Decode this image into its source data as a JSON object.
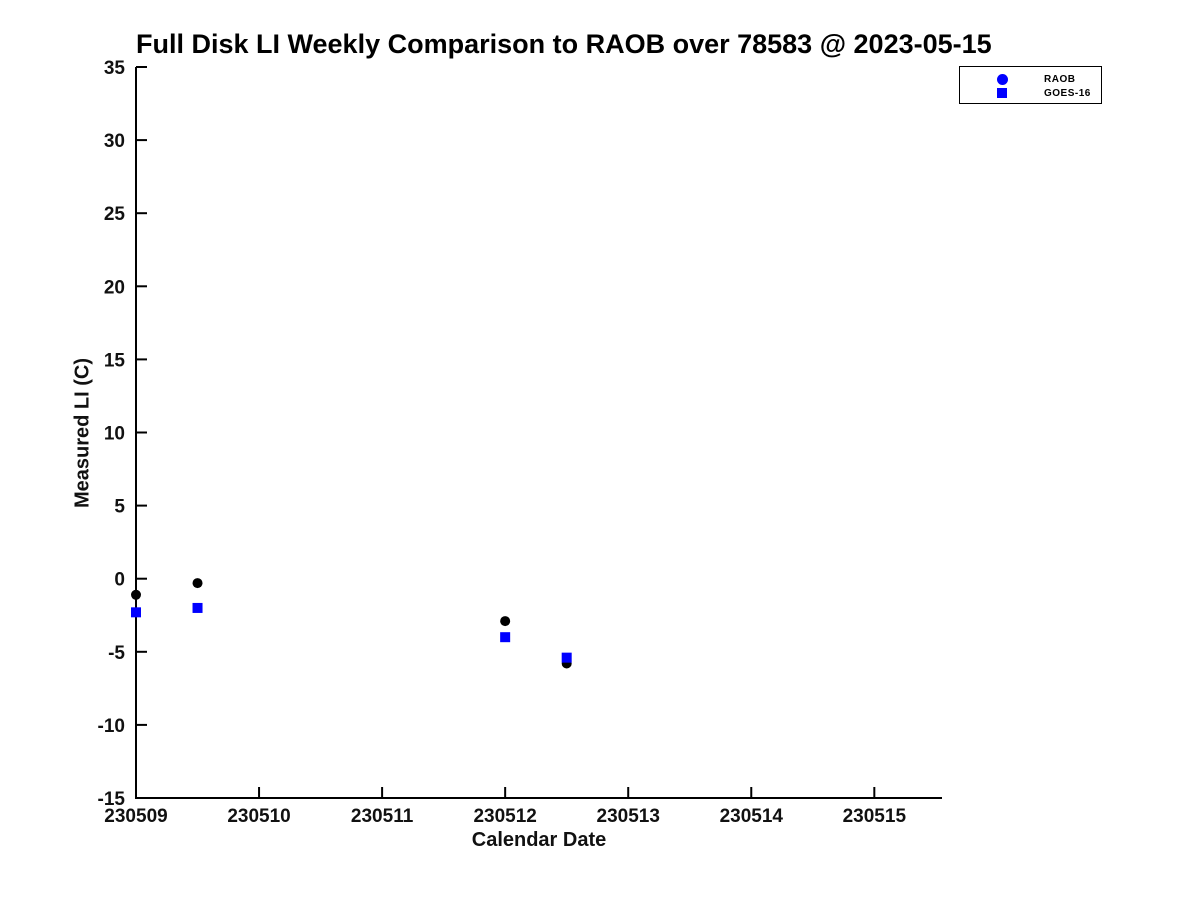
{
  "figure": {
    "background_color": "#ffffff"
  },
  "chart_data": {
    "type": "scatter",
    "title": "Full Disk LI Weekly Comparison to RAOB over 78583 @ 2023-05-15",
    "xlabel": "Calendar Date",
    "ylabel": "Measured LI (C)",
    "xlim": [
      230509,
      230515.55
    ],
    "ylim": [
      -15,
      35
    ],
    "xticks": [
      230509,
      230510,
      230511,
      230512,
      230513,
      230514,
      230515
    ],
    "yticks": [
      -15,
      -10,
      -5,
      0,
      5,
      10,
      15,
      20,
      25,
      30,
      35
    ],
    "grid": false,
    "axis_color": "#000000",
    "text_color": "#111111",
    "legend": {
      "position": "top-right",
      "border_color": "#000000",
      "entries": [
        "RAOB",
        "GOES-16"
      ]
    },
    "series": [
      {
        "name": "RAOB",
        "marker": "circle",
        "marker_color": "#000000",
        "legend_marker_color": "#0000ff",
        "x": [
          230509.0,
          230509.5,
          230512.0,
          230512.5
        ],
        "y": [
          -1.1,
          -0.3,
          -2.9,
          -5.8
        ]
      },
      {
        "name": "GOES-16",
        "marker": "square",
        "marker_color": "#0000ff",
        "legend_marker_color": "#0000ff",
        "x": [
          230509.0,
          230509.5,
          230512.0,
          230512.5
        ],
        "y": [
          -2.3,
          -2.0,
          -4.0,
          -5.4
        ]
      }
    ]
  }
}
